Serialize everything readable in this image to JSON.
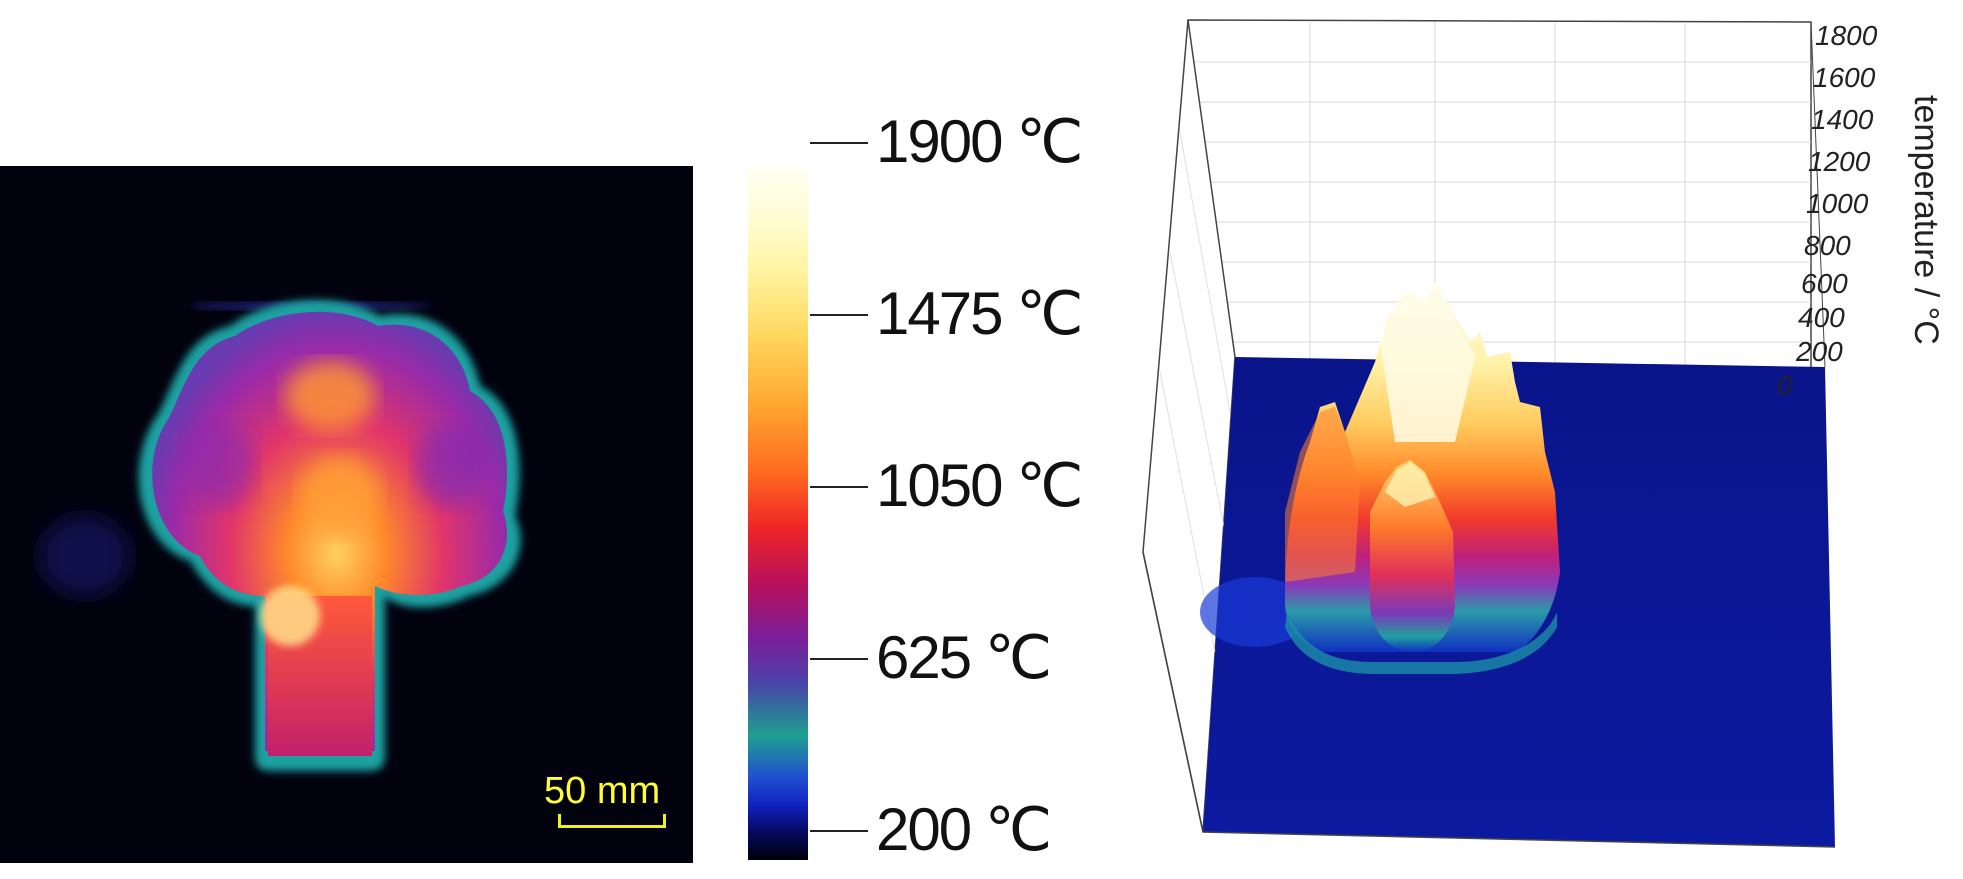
{
  "thermal_image": {
    "scale_bar_label": "50 mm",
    "colors": {
      "background": "#02020f",
      "scale_bar": "#f2f21a"
    }
  },
  "colorbar": {
    "ticks": [
      {
        "label": "1900 ℃",
        "value": 1900
      },
      {
        "label": "1475 ℃",
        "value": 1475
      },
      {
        "label": "1050 ℃",
        "value": 1050
      },
      {
        "label": "625 ℃",
        "value": 625
      },
      {
        "label": "200 ℃",
        "value": 200
      }
    ]
  },
  "surface_plot": {
    "z_axis_title": "temperature / °C",
    "z_ticks": [
      "1800",
      "1600",
      "1400",
      "1200",
      "1000",
      "800",
      "600",
      "400",
      "200",
      "0"
    ],
    "colors": {
      "floor": "#0a148a",
      "peak": "#fffce0"
    }
  }
}
